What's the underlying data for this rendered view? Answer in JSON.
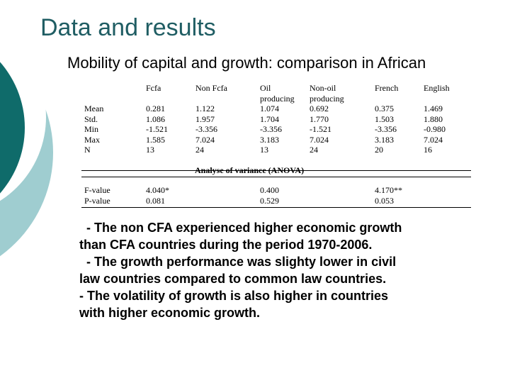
{
  "slide": {
    "title": "Data and results",
    "subtitle": "Mobility of capital and growth: comparison in African",
    "colors": {
      "title": "#1f5d63",
      "dark_teal": "#0f6b6a",
      "light_teal": "#9fcdd0"
    }
  },
  "stats_table": {
    "row_labels": [
      "Mean",
      "Std.",
      "Min",
      "Max",
      "N"
    ],
    "columns": [
      {
        "header": [
          "Fcfa"
        ],
        "values": [
          "0.281",
          "1.086",
          "-1.521",
          "1.585",
          "13"
        ]
      },
      {
        "header": [
          "Non Fcfa"
        ],
        "values": [
          "1.122",
          "1.957",
          "-3.356",
          "7.024",
          "24"
        ]
      },
      {
        "header": [
          "Oil",
          "producing"
        ],
        "values": [
          "1.074",
          "1.704",
          "-3.356",
          "3.183",
          "13"
        ]
      },
      {
        "header": [
          "Non-oil",
          "producing"
        ],
        "values": [
          "0.692",
          "1.770",
          "-1.521",
          "7.024",
          "24"
        ]
      },
      {
        "header": [
          "French"
        ],
        "values": [
          "0.375",
          "1.503",
          "-3.356",
          "3.183",
          "20"
        ]
      },
      {
        "header": [
          "English"
        ],
        "values": [
          "1.469",
          "1.880",
          "-0.980",
          "7.024",
          "16"
        ]
      }
    ]
  },
  "anova": {
    "title": "Analyse of variance (ANOVA)",
    "row_labels": [
      "F-value",
      "P-value"
    ],
    "groups": [
      {
        "values": [
          "4.040*",
          "0.081"
        ]
      },
      {
        "values": [
          "0.400",
          "0.529"
        ]
      },
      {
        "values": [
          "4.170**",
          "0.053"
        ]
      }
    ]
  },
  "findings": {
    "lines": [
      "  - The non CFA experienced higher economic growth",
      "than CFA countries during the period 1970-2006.",
      "  - The growth performance was slighty lower in civil",
      "law countries compared to common law countries.",
      "- The volatility of growth is also higher in countries",
      "with higher economic growth."
    ]
  }
}
